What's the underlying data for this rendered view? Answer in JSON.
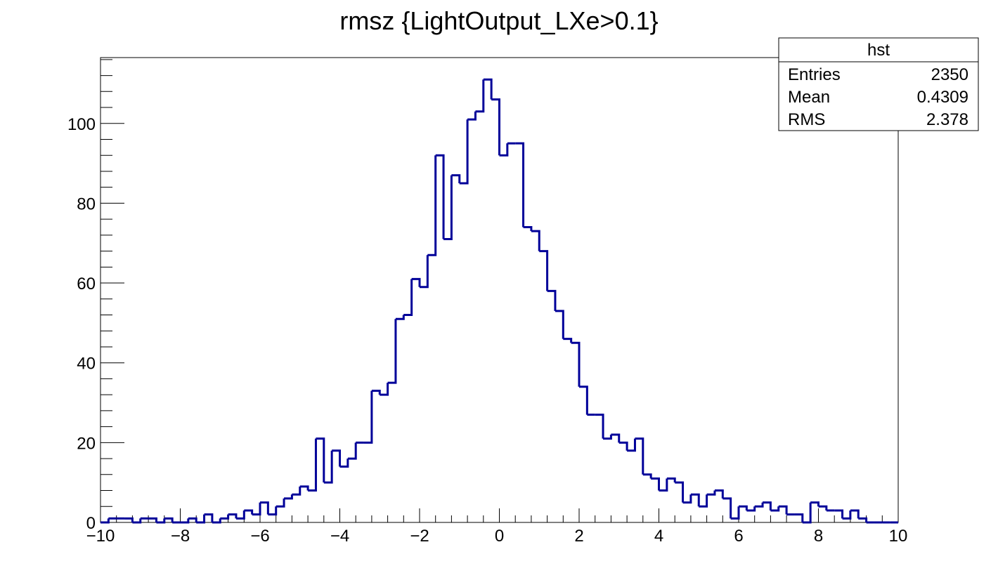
{
  "chart_data": {
    "type": "bar",
    "title": "rmsz {LightOutput_LXe>0.1}",
    "xlabel": "",
    "ylabel": "",
    "xlim": [
      -10,
      10
    ],
    "ylim": [
      0,
      116.5
    ],
    "bin_width": 0.2,
    "x_ticks": [
      "−10",
      "−8",
      "−6",
      "−4",
      "−2",
      "0",
      "2",
      "4",
      "6",
      "8",
      "10"
    ],
    "y_ticks": [
      "0",
      "20",
      "40",
      "60",
      "80",
      "100"
    ],
    "line_color": "#000099",
    "grid": false,
    "legend": "none",
    "series": [
      {
        "values": [
          0,
          1,
          1,
          1,
          0,
          1,
          1,
          0,
          1,
          0,
          0,
          1,
          0,
          2,
          0,
          1,
          2,
          1,
          3,
          2,
          5,
          2,
          4,
          6,
          7,
          9,
          8,
          21,
          10,
          18,
          14,
          16,
          20,
          20,
          33,
          32,
          35,
          51,
          52,
          61,
          59,
          67,
          92,
          71,
          87,
          85,
          101,
          103,
          111,
          106,
          92,
          95,
          95,
          74,
          73,
          68,
          58,
          53,
          46,
          45,
          34,
          27,
          27,
          21,
          22,
          20,
          18,
          21,
          12,
          11,
          8,
          11,
          10,
          5,
          7,
          4,
          7,
          8,
          6,
          1,
          4,
          3,
          4,
          5,
          3,
          4,
          2,
          2,
          0,
          5,
          4,
          3,
          3,
          1,
          3,
          1,
          0,
          0,
          0,
          0
        ]
      }
    ],
    "stats_box": {
      "title": "hst",
      "rows": [
        {
          "label": "Entries",
          "value": "2350"
        },
        {
          "label": "Mean",
          "value": "0.4309"
        },
        {
          "label": "RMS",
          "value": "2.378"
        }
      ]
    }
  }
}
